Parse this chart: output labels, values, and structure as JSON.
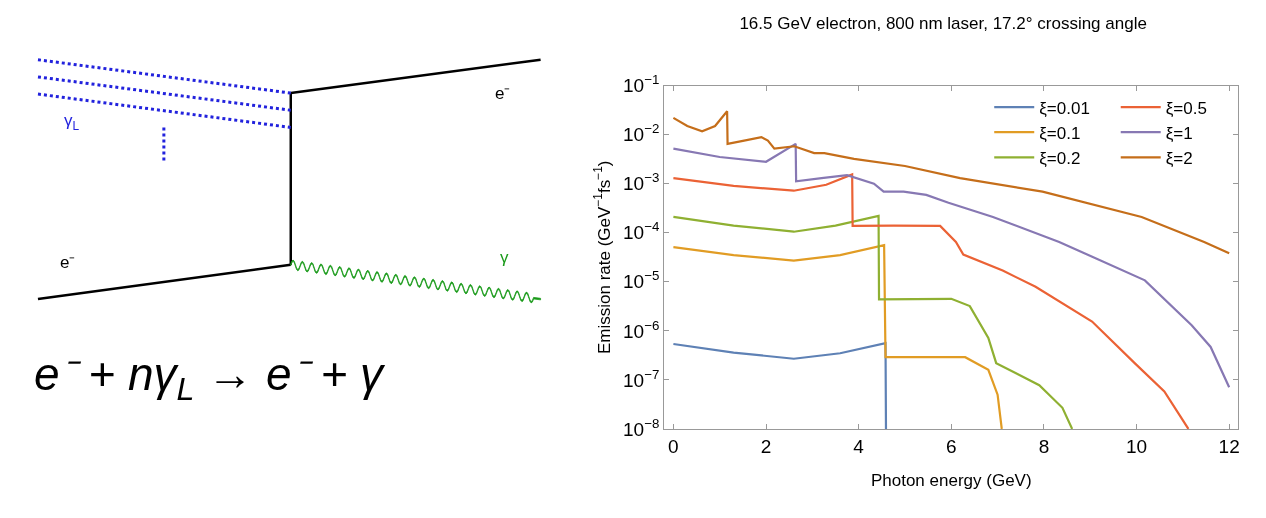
{
  "chart_data": {
    "type": "line",
    "title": "16.5 GeV electron, 800 nm laser, 17.2° crossing angle",
    "xlabel": "Photon energy (GeV)",
    "ylabel": "Emission rate (GeV$^{−1}$fs$^{−1}$)",
    "annotations": [
      "e⁻",
      "γ$_{L}$",
      "e⁻",
      "γ",
      "e⁻ + nγ$_{L}$ → e⁻ + γ"
    ],
    "series": [
      {
        "name": "ξ=0.01",
        "color": "#5e81b5",
        "x": [
          0,
          1.3,
          2.6,
          3.6,
          4.58,
          4.59
        ],
        "values": [
          5.4e-07,
          3.6e-07,
          2.7e-07,
          3.5e-07,
          5.6e-07,
          1e-08
        ]
      },
      {
        "name": "ξ=0.1",
        "color": "#e19c24",
        "x": [
          0,
          1.3,
          2.6,
          3.6,
          4.55,
          4.58,
          6.3,
          6.8,
          7.0,
          7.09
        ],
        "values": [
          5.1e-05,
          3.5e-05,
          2.7e-05,
          3.5e-05,
          5.6e-05,
          2.9e-07,
          2.9e-07,
          1.6e-07,
          5e-08,
          1e-08
        ]
      },
      {
        "name": "ξ=0.2",
        "color": "#8fb032",
        "x": [
          0,
          1.3,
          2.6,
          3.5,
          4.43,
          4.44,
          6.0,
          6.4,
          6.8,
          6.97,
          7.9,
          8.4,
          8.61
        ],
        "values": [
          0.00021,
          0.00014,
          0.000105,
          0.00014,
          0.00022,
          4.4e-06,
          4.5e-06,
          3.2e-06,
          7.2e-07,
          2.2e-07,
          7.8e-08,
          2.7e-08,
          1e-08
        ]
      },
      {
        "name": "ξ=0.5",
        "color": "#eb6235",
        "x": [
          0,
          1.3,
          2.6,
          3.3,
          3.86,
          3.87,
          4.76,
          5.76,
          6.1,
          6.26,
          7.11,
          7.82,
          9.04,
          9.96,
          10.6,
          11.12
        ],
        "values": [
          0.0013,
          0.0009,
          0.00072,
          0.00095,
          0.00155,
          0.000138,
          0.00014,
          0.000138,
          6.5e-05,
          3.6e-05,
          1.7e-05,
          7.9e-06,
          1.55e-06,
          2.2e-07,
          5.8e-08,
          1e-08
        ]
      },
      {
        "name": "ξ=1",
        "color": "#8778b3",
        "x": [
          0,
          1,
          2,
          2.64,
          2.65,
          3.2,
          3.75,
          4.33,
          4.54,
          4.97,
          5.46,
          5.94,
          6.9,
          8.33,
          10.18,
          11.19,
          11.6,
          12
        ],
        "values": [
          0.0052,
          0.0035,
          0.0028,
          0.0065,
          0.00112,
          0.0013,
          0.0015,
          0.001,
          0.00069,
          0.00069,
          0.00059,
          0.00041,
          0.00021,
          6.5e-05,
          1.07e-05,
          1.3e-06,
          4.7e-07,
          7.1e-08
        ]
      },
      {
        "name": "ξ=2",
        "color": "#c56e1a",
        "x": [
          0,
          0.3,
          0.62,
          0.9,
          1.16,
          1.17,
          1.5,
          1.9,
          2.04,
          2.18,
          2.61,
          3.04,
          3.26,
          3.9,
          5.0,
          6.19,
          7.97,
          10.11,
          11.46,
          12
        ],
        "values": [
          0.022,
          0.015,
          0.0117,
          0.015,
          0.03,
          0.0065,
          0.0075,
          0.0089,
          0.0076,
          0.0052,
          0.0058,
          0.0042,
          0.0042,
          0.0032,
          0.0023,
          0.0013,
          0.00069,
          0.00021,
          6.5e-05,
          3.8e-05
        ]
      }
    ],
    "xlim": [
      -0.2,
      12.2
    ],
    "xticks": [
      0,
      2,
      4,
      6,
      8,
      10,
      12
    ],
    "ylim": [
      1e-08,
      0.1
    ],
    "yticks": [
      {
        "value": 0.1,
        "label": "10$^{−1}$"
      },
      {
        "value": 0.01,
        "label": "10$^{−2}$"
      },
      {
        "value": 0.001,
        "label": "10$^{−3}$"
      },
      {
        "value": 0.0001,
        "label": "10$^{−4}$"
      },
      {
        "value": 1e-05,
        "label": "10$^{−5}$"
      },
      {
        "value": 1e-06,
        "label": "10$^{−6}$"
      },
      {
        "value": 1e-07,
        "label": "10$^{−7}$"
      },
      {
        "value": 1e-08,
        "label": "10$^{−8}$"
      }
    ],
    "log": true,
    "legend": "top right",
    "marker": "none",
    "line_style": "solid"
  }
}
